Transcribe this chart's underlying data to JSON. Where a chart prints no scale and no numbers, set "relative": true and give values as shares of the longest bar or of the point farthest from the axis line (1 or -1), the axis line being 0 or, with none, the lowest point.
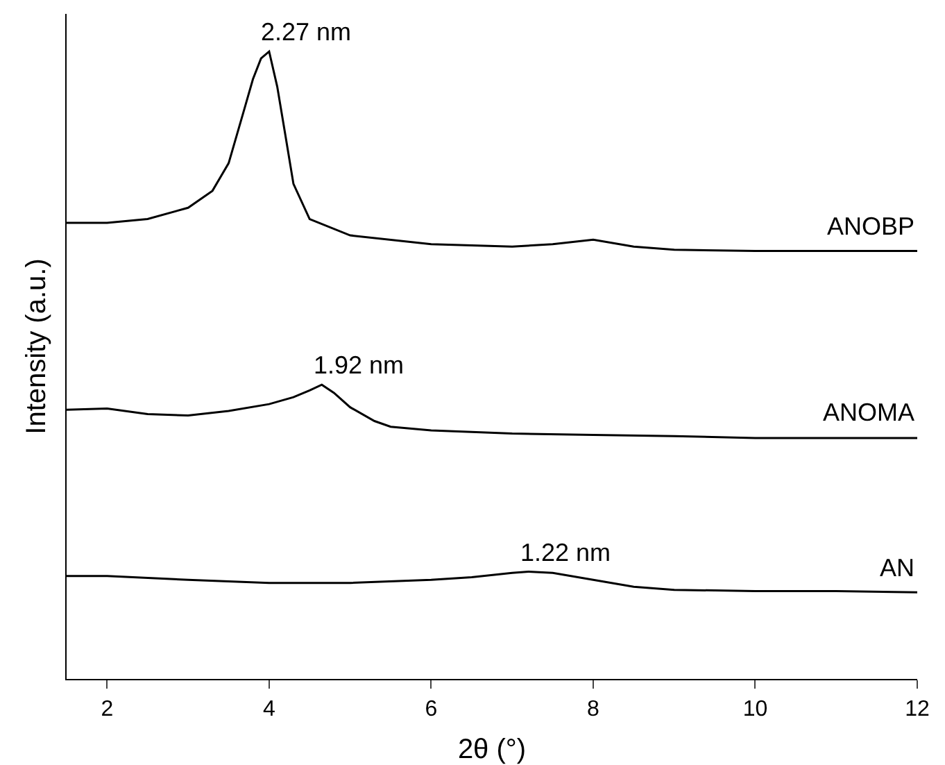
{
  "chart_data": {
    "type": "line",
    "relative": true,
    "xlabel": "2θ (°)",
    "ylabel": "Intensity (a.u.)",
    "xlim": [
      1.5,
      12
    ],
    "xticks": [
      2,
      4,
      6,
      8,
      10,
      12
    ],
    "grid": false,
    "legend": false,
    "marker": "none",
    "line_style": "solid",
    "tick_labels": "x",
    "series": [
      {
        "name": "AN",
        "color": "#000000",
        "x": [
          1.5,
          2,
          3,
          4,
          5,
          6,
          6.5,
          7,
          7.2,
          7.5,
          8,
          8.5,
          9,
          10,
          11,
          12
        ],
        "values": [
          0.164,
          0.164,
          0.158,
          0.153,
          0.153,
          0.158,
          0.162,
          0.169,
          0.171,
          0.169,
          0.158,
          0.147,
          0.142,
          0.14,
          0.14,
          0.138
        ]
      },
      {
        "name": "ANOMA",
        "color": "#000000",
        "x": [
          1.5,
          2,
          2.5,
          3,
          3.5,
          4,
          4.3,
          4.5,
          4.65,
          4.8,
          5,
          5.3,
          5.5,
          6,
          7,
          8,
          9,
          10,
          12
        ],
        "values": [
          0.429,
          0.431,
          0.422,
          0.42,
          0.427,
          0.438,
          0.449,
          0.46,
          0.469,
          0.456,
          0.433,
          0.411,
          0.402,
          0.396,
          0.391,
          0.389,
          0.387,
          0.384,
          0.384
        ]
      },
      {
        "name": "ANOBP",
        "color": "#000000",
        "x": [
          1.5,
          2,
          2.5,
          3,
          3.3,
          3.5,
          3.7,
          3.8,
          3.9,
          4.0,
          4.1,
          4.2,
          4.3,
          4.5,
          5,
          6,
          7,
          7.5,
          8,
          8.5,
          9,
          10,
          12
        ],
        "values": [
          0.727,
          0.727,
          0.733,
          0.751,
          0.778,
          0.822,
          0.911,
          0.956,
          0.989,
          1,
          0.944,
          0.867,
          0.789,
          0.733,
          0.707,
          0.693,
          0.689,
          0.693,
          0.7,
          0.689,
          0.684,
          0.682,
          0.682
        ]
      }
    ],
    "annotations": [
      {
        "text": "2.27 nm",
        "x": 4.0,
        "y": 1
      },
      {
        "text": "1.92 nm",
        "x": 4.65,
        "y": 0.469
      },
      {
        "text": "1.22 nm",
        "x": 7.2,
        "y": 0.171
      }
    ]
  }
}
